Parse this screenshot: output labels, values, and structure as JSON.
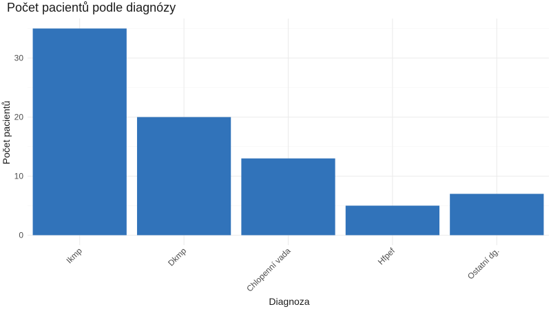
{
  "chart_data": {
    "type": "bar",
    "title": "Počet pacientů podle diagnózy",
    "xlabel": "Diagnoza",
    "ylabel": "Počet pacientů",
    "categories": [
      "Ikmp",
      "Dkmp",
      "Chlopenní vada",
      "Hfpef",
      "Ostatní dg."
    ],
    "values": [
      35,
      20,
      13,
      5,
      7
    ],
    "ylim": [
      0,
      36.5
    ],
    "yticks": [
      0,
      10,
      20,
      30
    ],
    "grid": true,
    "bar_color": "#3173BA",
    "legend": "none"
  }
}
